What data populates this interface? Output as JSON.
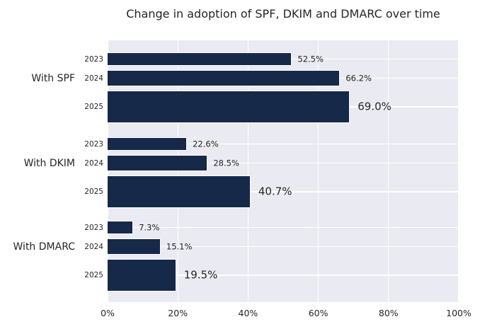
{
  "chart_data": {
    "type": "bar",
    "orientation": "horizontal",
    "title": "Change in adoption of SPF, DKIM and DMARC over time",
    "xlabel": "",
    "ylabel": "",
    "xlim": [
      0,
      100
    ],
    "grid": true,
    "x_ticks": [
      {
        "value": 0,
        "label": "0%"
      },
      {
        "value": 20,
        "label": "20%"
      },
      {
        "value": 40,
        "label": "40%"
      },
      {
        "value": 60,
        "label": "60%"
      },
      {
        "value": 80,
        "label": "80%"
      },
      {
        "value": 100,
        "label": "100%"
      }
    ],
    "groups": [
      {
        "label": "With SPF",
        "bars": [
          {
            "year": "2023",
            "value": 52.5,
            "label": "52.5%"
          },
          {
            "year": "2024",
            "value": 66.2,
            "label": "66.2%"
          },
          {
            "year": "2025",
            "value": 69.0,
            "label": "69.0%"
          }
        ]
      },
      {
        "label": "With DKIM",
        "bars": [
          {
            "year": "2023",
            "value": 22.6,
            "label": "22.6%"
          },
          {
            "year": "2024",
            "value": 28.5,
            "label": "28.5%"
          },
          {
            "year": "2025",
            "value": 40.7,
            "label": "40.7%"
          }
        ]
      },
      {
        "label": "With DMARC",
        "bars": [
          {
            "year": "2023",
            "value": 7.3,
            "label": "7.3%"
          },
          {
            "year": "2024",
            "value": 15.1,
            "label": "15.1%"
          },
          {
            "year": "2025",
            "value": 19.5,
            "label": "19.5%"
          }
        ]
      }
    ],
    "colors": {
      "bar": "#162949",
      "plot_background": "#eaeaf2",
      "figure_background": "#ffffff",
      "grid": "#ffffff",
      "text": "#262626"
    }
  }
}
